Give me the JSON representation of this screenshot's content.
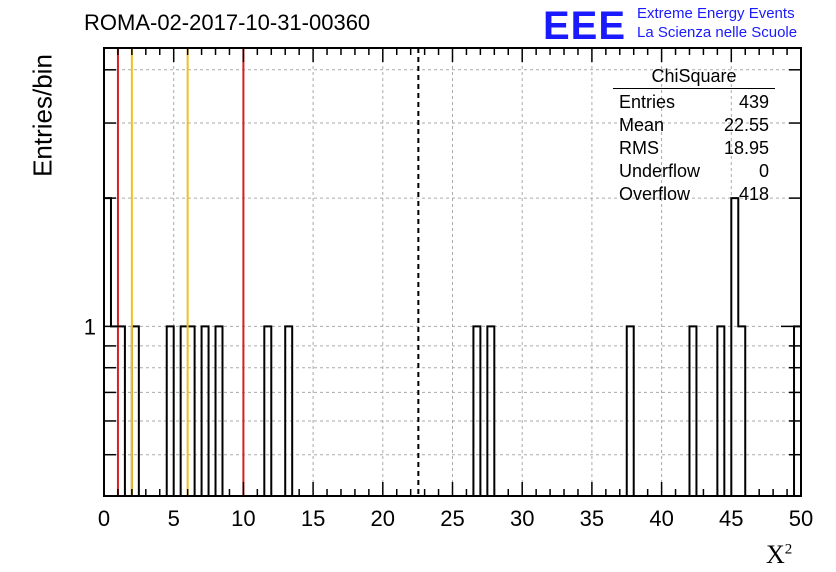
{
  "title": "ROMA-02-2017-10-31-00360",
  "branding": {
    "logo": "EEE",
    "line1": "Extreme Energy Events",
    "line2": "La Scienza nelle Scuole",
    "color": "#1a1aff"
  },
  "stats_box": {
    "title": "ChiSquare",
    "rows": [
      {
        "label": "Entries",
        "value": "439"
      },
      {
        "label": "Mean",
        "value": "22.55"
      },
      {
        "label": "RMS",
        "value": "18.95"
      },
      {
        "label": "Underflow",
        "value": "0"
      },
      {
        "label": "Overflow",
        "value": "418"
      }
    ]
  },
  "chart_data": {
    "type": "bar",
    "xlabel": "X",
    "xlabel_superscript": "2",
    "ylabel": "Entries/bin",
    "xlim": [
      0,
      50
    ],
    "ylim_log": [
      0.4,
      4.5
    ],
    "yscale": "log",
    "grid": true,
    "x_ticks": [
      "0",
      "5",
      "10",
      "15",
      "20",
      "25",
      "30",
      "35",
      "40",
      "45",
      "50"
    ],
    "y_tick_labels": [
      {
        "value": 1,
        "label": "1"
      }
    ],
    "bin_width": 0.5,
    "bins": [
      {
        "x": 0.0,
        "count": 2
      },
      {
        "x": 0.5,
        "count": 1
      },
      {
        "x": 1.0,
        "count": 1
      },
      {
        "x": 2.0,
        "count": 1
      },
      {
        "x": 4.5,
        "count": 1
      },
      {
        "x": 5.5,
        "count": 1
      },
      {
        "x": 6.0,
        "count": 1
      },
      {
        "x": 7.0,
        "count": 1
      },
      {
        "x": 8.0,
        "count": 1
      },
      {
        "x": 11.5,
        "count": 1
      },
      {
        "x": 13.0,
        "count": 1
      },
      {
        "x": 26.5,
        "count": 1
      },
      {
        "x": 27.5,
        "count": 1
      },
      {
        "x": 37.5,
        "count": 1
      },
      {
        "x": 42.0,
        "count": 1
      },
      {
        "x": 44.0,
        "count": 1
      },
      {
        "x": 45.0,
        "count": 2
      },
      {
        "x": 45.5,
        "count": 1
      },
      {
        "x": 49.5,
        "count": 1
      }
    ],
    "markers": [
      {
        "x": 1.0,
        "color": "#d62020",
        "style": "solid"
      },
      {
        "x": 2.0,
        "color": "#f0c020",
        "style": "solid"
      },
      {
        "x": 6.0,
        "color": "#f0c020",
        "style": "solid"
      },
      {
        "x": 10.0,
        "color": "#d62020",
        "style": "solid"
      },
      {
        "x": 22.55,
        "color": "#000000",
        "style": "dashed"
      }
    ]
  }
}
